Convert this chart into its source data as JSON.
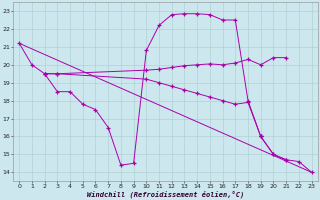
{
  "bg_color": "#cce8ee",
  "grid_color": "#aacccc",
  "line_color": "#aa00aa",
  "xlim": [
    -0.5,
    23.5
  ],
  "ylim": [
    13.5,
    23.5
  ],
  "yticks": [
    14,
    15,
    16,
    17,
    18,
    19,
    20,
    21,
    22,
    23
  ],
  "xticks": [
    0,
    1,
    2,
    3,
    4,
    5,
    6,
    7,
    8,
    9,
    10,
    11,
    12,
    13,
    14,
    15,
    16,
    17,
    18,
    19,
    20,
    21,
    22,
    23
  ],
  "xlabel": "Windchill (Refroidissement éolien,°C)",
  "s1x": [
    0,
    1,
    2,
    3,
    4,
    5,
    6,
    7,
    8,
    9,
    10,
    11,
    12,
    13,
    14,
    15,
    16,
    17,
    18,
    19,
    20,
    21
  ],
  "s1y": [
    21.2,
    20.0,
    19.5,
    18.5,
    18.5,
    17.8,
    17.5,
    16.5,
    14.4,
    14.5,
    20.8,
    22.2,
    22.8,
    22.85,
    22.85,
    22.8,
    22.5,
    22.5,
    18.0,
    16.0,
    15.0,
    14.7
  ],
  "s2x": [
    2,
    3,
    10,
    11,
    12,
    13,
    14,
    15,
    16,
    17,
    18,
    19,
    20,
    21
  ],
  "s2y": [
    19.5,
    19.5,
    19.7,
    19.75,
    19.85,
    19.95,
    20.0,
    20.05,
    20.0,
    20.1,
    20.3,
    20.0,
    20.4,
    20.4
  ],
  "s3x": [
    2,
    3,
    10,
    11,
    12,
    13,
    14,
    15,
    16,
    17,
    18,
    19
  ],
  "s3y": [
    19.5,
    19.5,
    19.2,
    19.0,
    18.8,
    18.6,
    18.4,
    18.2,
    18.0,
    17.8,
    17.9,
    16.0
  ],
  "s4x": [
    0,
    23
  ],
  "s4y": [
    21.2,
    14.0
  ],
  "s5x": [
    19,
    20,
    21,
    22,
    23
  ],
  "s5y": [
    16.0,
    15.0,
    14.7,
    14.6,
    14.0
  ]
}
